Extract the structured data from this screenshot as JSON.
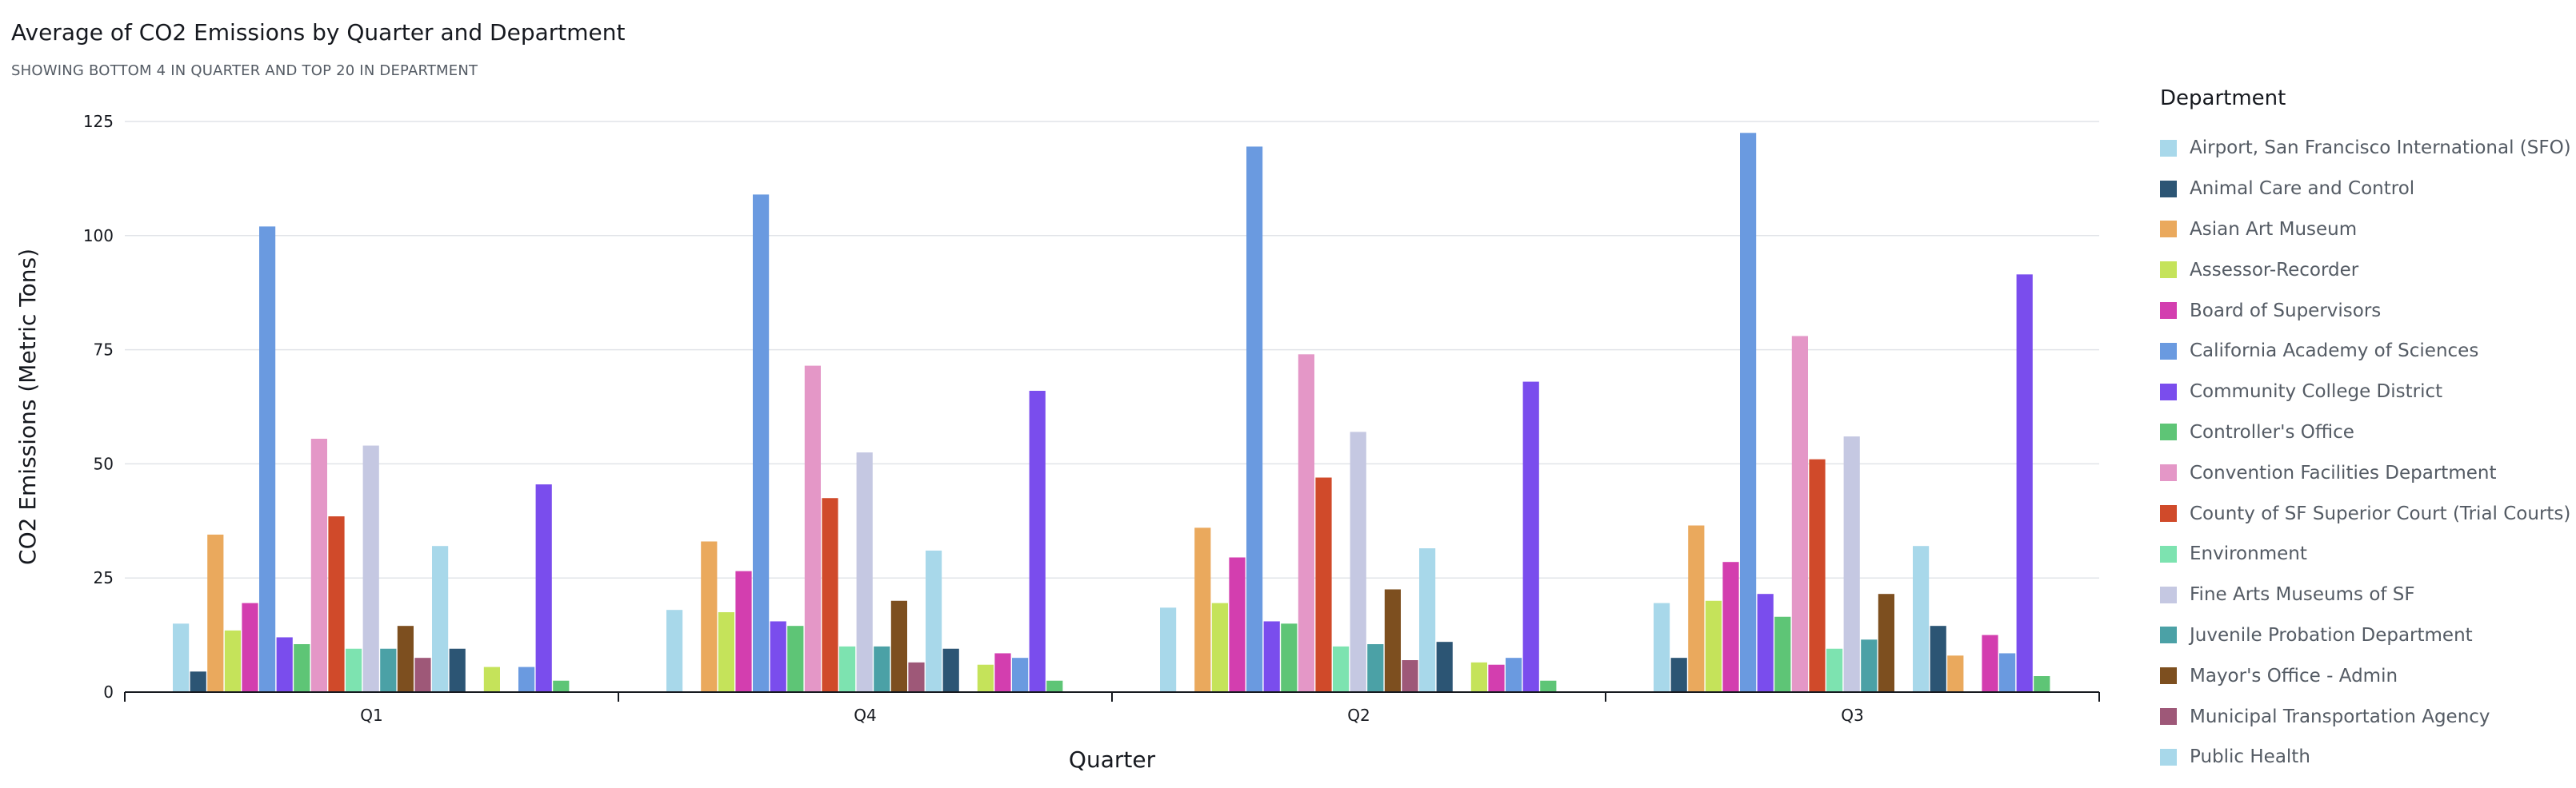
{
  "title": "Average of CO2 Emissions by Quarter and Department",
  "subtitle": "SHOWING BOTTOM 4 IN QUARTER AND TOP 20 IN DEPARTMENT",
  "legend_title": "Department",
  "chart_data": {
    "type": "bar",
    "title": "Average of CO2 Emissions by Quarter and Department",
    "subtitle": "SHOWING BOTTOM 4 IN QUARTER AND TOP 20 IN DEPARTMENT",
    "xlabel": "Quarter",
    "ylabel": "CO2 Emissions (Metric Tons)",
    "ylim": [
      0,
      125
    ],
    "yticks": [
      0,
      25,
      50,
      75,
      100,
      125
    ],
    "grid": true,
    "legend": "right",
    "categories": [
      "Q1",
      "Q4",
      "Q2",
      "Q3"
    ],
    "series": [
      {
        "name": "Airport, San Francisco International (SFO)",
        "color": "#a8d8ea",
        "values": [
          15.0,
          18.0,
          18.5,
          19.5
        ]
      },
      {
        "name": "Animal Care and Control",
        "color": "#2c5574",
        "values": [
          4.5,
          null,
          null,
          7.5
        ]
      },
      {
        "name": "Asian Art Museum",
        "color": "#eaa95d",
        "values": [
          34.5,
          33.0,
          36.0,
          36.5
        ]
      },
      {
        "name": "Assessor-Recorder",
        "color": "#c5e35a",
        "values": [
          13.5,
          17.5,
          19.5,
          20.0
        ]
      },
      {
        "name": "Board of Supervisors",
        "color": "#d33eaf",
        "values": [
          19.5,
          26.5,
          29.5,
          28.5
        ]
      },
      {
        "name": "California Academy of Sciences",
        "color": "#6a9ae0",
        "values": [
          102.0,
          109.0,
          119.5,
          122.5
        ]
      },
      {
        "name": "Community College District",
        "color": "#7a4ded",
        "values": [
          12.0,
          15.5,
          15.5,
          21.5
        ]
      },
      {
        "name": "Controller's Office",
        "color": "#5ec576",
        "values": [
          10.5,
          14.5,
          15.0,
          16.5
        ]
      },
      {
        "name": "Convention Facilities Department",
        "color": "#e497c7",
        "values": [
          55.5,
          71.5,
          74.0,
          78.0
        ]
      },
      {
        "name": "County of SF Superior Court (Trial Courts)",
        "color": "#d04a2a",
        "values": [
          38.5,
          42.5,
          47.0,
          51.0
        ]
      },
      {
        "name": "Environment",
        "color": "#7de3b0",
        "values": [
          9.5,
          10.0,
          10.0,
          9.5
        ]
      },
      {
        "name": "Fine Arts Museums of SF",
        "color": "#c5c8e2",
        "values": [
          54.0,
          52.5,
          57.0,
          56.0
        ]
      },
      {
        "name": "Juvenile Probation Department",
        "color": "#4ba1a6",
        "values": [
          9.5,
          10.0,
          10.5,
          11.5
        ]
      },
      {
        "name": "Mayor's Office - Admin",
        "color": "#7d4f1f",
        "values": [
          14.5,
          20.0,
          22.5,
          21.5
        ]
      },
      {
        "name": "Municipal Transportation Agency",
        "color": "#9e5878",
        "values": [
          7.5,
          6.5,
          7.0,
          null
        ]
      },
      {
        "name": "Public Health",
        "color": "#a8d8ea",
        "values": [
          32.0,
          31.0,
          31.5,
          32.0
        ]
      },
      {
        "name": "",
        "color": "#2c5574",
        "values": [
          9.5,
          9.5,
          11.0,
          14.5
        ]
      },
      {
        "name": "",
        "color": "#eaa95d",
        "values": [
          null,
          null,
          null,
          8.0
        ]
      },
      {
        "name": "",
        "color": "#c5e35a",
        "values": [
          5.5,
          6.0,
          6.5,
          null
        ]
      },
      {
        "name": "",
        "color": "#d33eaf",
        "values": [
          null,
          8.5,
          6.0,
          12.5
        ]
      },
      {
        "name": "",
        "color": "#6a9ae0",
        "values": [
          5.5,
          7.5,
          7.5,
          8.5
        ]
      },
      {
        "name": "",
        "color": "#7a4ded",
        "values": [
          45.5,
          66.0,
          68.0,
          91.5
        ]
      },
      {
        "name": "",
        "color": "#5ec576",
        "values": [
          2.5,
          2.5,
          2.5,
          3.5
        ]
      }
    ]
  }
}
